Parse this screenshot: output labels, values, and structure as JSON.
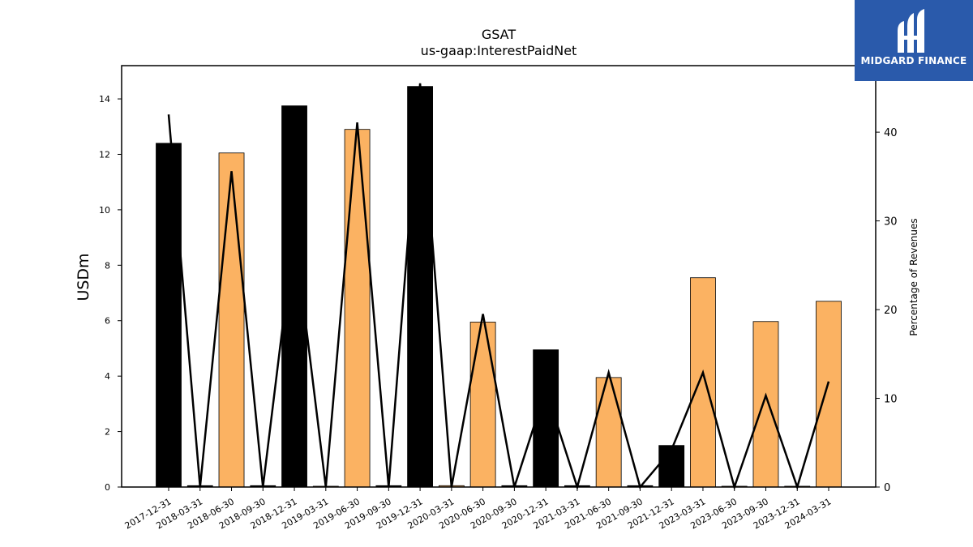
{
  "chart_data": {
    "type": "bar+line",
    "title": "GSAT",
    "subtitle": "us-gaap:InterestPaidNet",
    "ylabel": "USDm",
    "y2label": "Percentage of Revenues",
    "ylim": [
      0,
      15.2
    ],
    "y2lim": [
      0,
      47.5
    ],
    "yticks": [
      0,
      2,
      4,
      6,
      8,
      10,
      12,
      14
    ],
    "y2ticks": [
      0,
      10,
      20,
      30,
      40
    ],
    "categories": [
      "2017-12-31",
      "2018-03-31",
      "2018-06-30",
      "2018-09-30",
      "2018-12-31",
      "2019-03-31",
      "2019-06-30",
      "2019-09-30",
      "2019-12-31",
      "2020-03-31",
      "2020-06-30",
      "2020-09-30",
      "2020-12-31",
      "2021-03-31",
      "2021-06-30",
      "2021-09-30",
      "2021-12-31",
      "2023-03-31",
      "2023-06-30",
      "2023-09-30",
      "2023-12-31",
      "2024-03-31"
    ],
    "bar_values": [
      12.4,
      0.05,
      12.05,
      0.05,
      13.75,
      0.0,
      12.9,
      0.05,
      14.45,
      0.05,
      5.95,
      0.05,
      4.95,
      0.05,
      3.95,
      0.05,
      1.5,
      7.55,
      0.0,
      5.97,
      0.0,
      6.7
    ],
    "bar_colors": [
      "#000000",
      "#000000",
      "#fbb262",
      "#000000",
      "#000000",
      "#fbb262",
      "#fbb262",
      "#000000",
      "#000000",
      "#fbb262",
      "#fbb262",
      "#000000",
      "#000000",
      "#000000",
      "#fbb262",
      "#000000",
      "#000000",
      "#fbb262",
      "#fbb262",
      "#fbb262",
      "#fbb262",
      "#fbb262"
    ],
    "line_series": {
      "name": "",
      "values": [
        42.0,
        0.0,
        35.6,
        0.0,
        28.9,
        0.0,
        41.1,
        0.0,
        45.5,
        0.0,
        19.5,
        0.0,
        11.0,
        0.0,
        12.9,
        0.0,
        4.2,
        12.9,
        0.0,
        10.3,
        0.0,
        11.9
      ]
    },
    "colors": {
      "dark": "#000000",
      "accent": "#fbb262"
    },
    "grid": false
  },
  "logo": {
    "text": "MIDGARD FINANCE",
    "background": "#2a5aab"
  }
}
